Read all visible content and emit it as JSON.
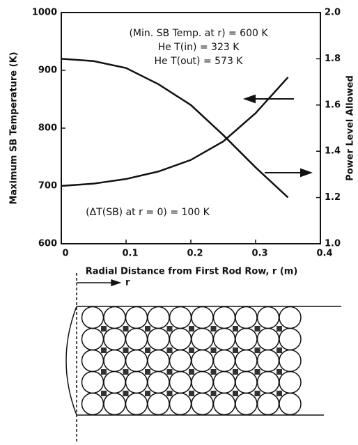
{
  "chart_data": {
    "type": "line",
    "x_label": "Radial Distance from First Rod Row, r (m)",
    "y_label": "Maximum SB Temperature (K)",
    "y2_label": "Power Level Allowed",
    "annotations": [
      "(Min. SB Temp. at r) = 600 K",
      "He T(in) = 323 K",
      "He T(out) = 573 K",
      "(ΔT(SB) at r = 0) = 100 K"
    ],
    "x": [
      0,
      0.05,
      0.1,
      0.15,
      0.2,
      0.25,
      0.3,
      0.35
    ],
    "series": [
      {
        "color": "#111111",
        "values": [
          700,
          704,
          712,
          725,
          745,
          777,
          826,
          888
        ]
      },
      {
        "color": "#111111",
        "axis": "y2",
        "values": [
          1.8,
          1.79,
          1.76,
          1.69,
          1.6,
          1.47,
          1.33,
          1.2
        ]
      }
    ],
    "xlim": [
      0,
      0.4
    ],
    "xticks": [
      0,
      0.1,
      0.2,
      0.3,
      0.4
    ],
    "ylim": [
      600,
      1000
    ],
    "yticks": [
      600,
      700,
      800,
      900,
      1000
    ],
    "y2lim": [
      1.0,
      2.0
    ],
    "y2ticks": [
      {
        "value": 1.0,
        "label": "1.0"
      },
      1.2,
      1.4,
      1.6,
      1.8,
      {
        "value": 2.0,
        "label": "2.0"
      }
    ]
  },
  "diagram": {
    "label": "r"
  }
}
